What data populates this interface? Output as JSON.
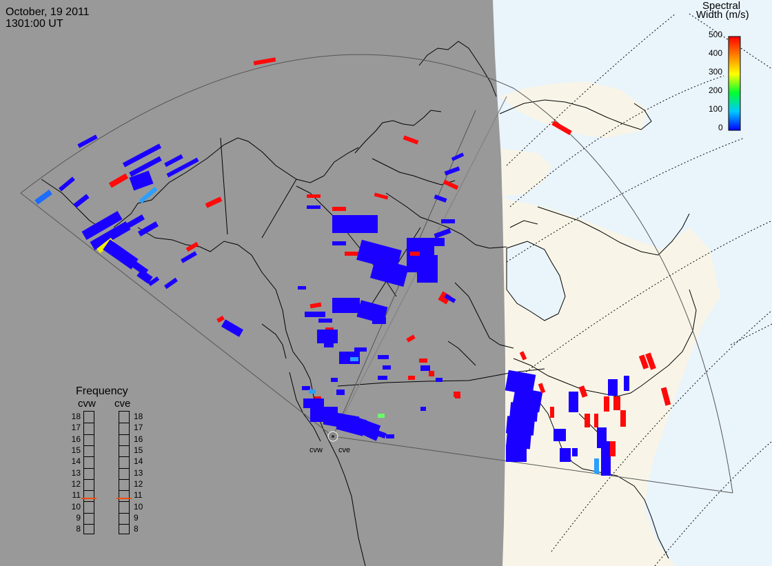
{
  "date": "October, 19 2011",
  "time": "1301:00 UT",
  "colorbar": {
    "title_line1": "Spectral",
    "title_line2": "Width (m/s)",
    "ticks": [
      "500",
      "400",
      "300",
      "200",
      "100",
      "0"
    ]
  },
  "frequency": {
    "title": "Frequency",
    "radar_left": "cvw",
    "radar_right": "cve",
    "scale": [
      "18",
      "17",
      "16",
      "15",
      "14",
      "13",
      "12",
      "11",
      "10",
      "9",
      "8"
    ],
    "cvw_value": 10.8,
    "cve_value": 10.8
  },
  "radars": [
    "cvw",
    "cve"
  ],
  "colors": {
    "night": "#999999",
    "day_land": "#f8f5e8",
    "day_water": "#e9f4fb",
    "low_width": "#1a00ff",
    "high_width": "#ff0a0a",
    "indicator": "#ff4a00"
  }
}
